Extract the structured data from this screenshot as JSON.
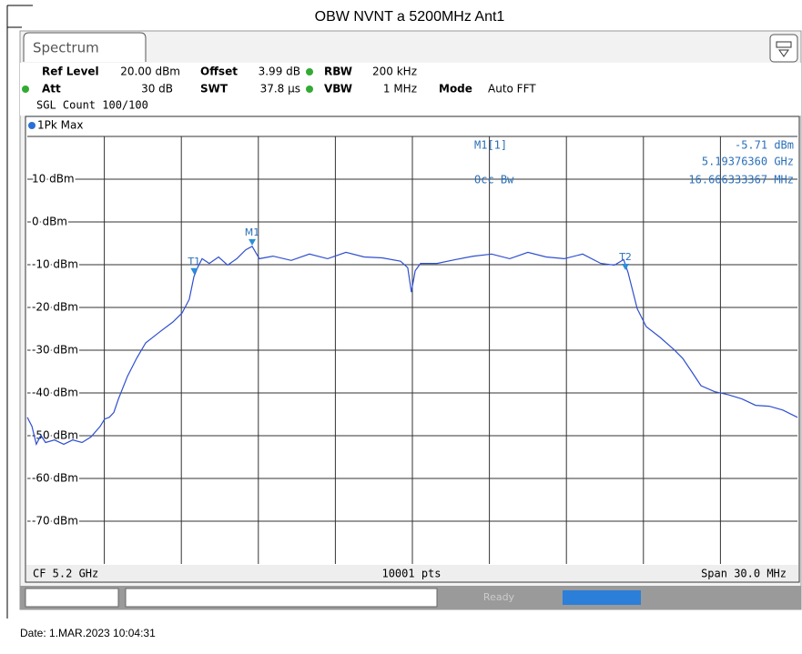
{
  "title": "OBW NVNT a 5200MHz Ant1",
  "tab": "Spectrum",
  "settings": {
    "row1": [
      "Ref Level",
      "20.00 dBm",
      "Offset",
      "3.99 dB",
      "RBW",
      "200 kHz"
    ],
    "row2": [
      "Att",
      "30 dB",
      "SWT",
      "37.8 µs",
      "VBW",
      "1 MHz",
      "Mode",
      "Auto FFT"
    ],
    "count": "SGL Count 100/100"
  },
  "trace_label": "1Pk Max",
  "readout": {
    "marker": "M1[1]",
    "level": "-5.71 dBm",
    "freq": "5.19376360 GHz",
    "obw_label": "Occ Bw",
    "obw": "16.666333367 MHz"
  },
  "footer_row": {
    "cf": "CF 5.2 GHz",
    "pts": "10001 pts",
    "span": "Span 30.0 MHz"
  },
  "status": "Ready",
  "date": "Date: 1.MAR.2023  10:04:31",
  "chart_data": {
    "type": "line",
    "xlim": [
      5185,
      5215
    ],
    "ylim": [
      -80,
      20
    ],
    "yticks": [
      {
        "value": 10,
        "label": "10 dBm"
      },
      {
        "value": 0,
        "label": "0 dBm"
      },
      {
        "value": -10,
        "label": "-10 dBm"
      },
      {
        "value": -20,
        "label": "-20 dBm"
      },
      {
        "value": -30,
        "label": "-30 dBm"
      },
      {
        "value": -40,
        "label": "-40 dBm"
      },
      {
        "value": -50,
        "label": "-50 dBm"
      },
      {
        "value": -60,
        "label": "-60 dBm"
      },
      {
        "value": -70,
        "label": "-70 dBm"
      }
    ],
    "grid": true,
    "series": [
      {
        "name": "1Pk Max",
        "color": "#2f4fd0",
        "x": [
          5185.0,
          5185.18,
          5185.35,
          5185.53,
          5185.71,
          5186.06,
          5186.42,
          5186.77,
          5187.13,
          5187.48,
          5187.84,
          5188.01,
          5188.19,
          5188.37,
          5188.55,
          5188.9,
          5189.26,
          5189.61,
          5190.14,
          5190.67,
          5191.03,
          5191.31,
          5191.49,
          5191.63,
          5191.81,
          5192.09,
          5192.45,
          5192.8,
          5193.16,
          5193.51,
          5193.76,
          5194.04,
          5194.57,
          5195.28,
          5195.99,
          5196.7,
          5197.41,
          5198.12,
          5198.83,
          5199.54,
          5199.82,
          5199.96,
          5200.11,
          5200.32,
          5200.96,
          5201.67,
          5202.38,
          5203.09,
          5203.79,
          5204.5,
          5205.21,
          5205.92,
          5206.63,
          5207.34,
          5207.87,
          5208.23,
          5208.4,
          5208.76,
          5209.11,
          5209.65,
          5210.18,
          5210.53,
          5210.89,
          5211.24,
          5211.77,
          5212.3,
          5212.84,
          5213.37,
          5213.9,
          5214.43,
          5215.0
        ],
        "values": [
          -45.7,
          -47.8,
          -52.0,
          -49.9,
          -51.6,
          -51.0,
          -52.0,
          -51.0,
          -51.6,
          -50.3,
          -47.8,
          -46.1,
          -45.7,
          -44.6,
          -41.4,
          -36.1,
          -31.9,
          -28.3,
          -25.8,
          -23.4,
          -21.3,
          -18.1,
          -12.8,
          -10.7,
          -8.6,
          -9.7,
          -8.2,
          -10.1,
          -8.6,
          -6.5,
          -5.71,
          -8.6,
          -8.0,
          -9.0,
          -7.5,
          -8.6,
          -7.1,
          -8.2,
          -8.4,
          -9.2,
          -10.7,
          -16.4,
          -11.4,
          -9.7,
          -9.7,
          -8.8,
          -8.0,
          -7.5,
          -8.6,
          -7.1,
          -8.2,
          -8.6,
          -7.5,
          -9.7,
          -10.1,
          -8.8,
          -11.8,
          -20.3,
          -24.5,
          -27.0,
          -29.8,
          -31.9,
          -35.1,
          -38.3,
          -39.7,
          -40.4,
          -41.4,
          -42.9,
          -43.1,
          -44.0,
          -45.7
        ]
      }
    ],
    "markers": [
      {
        "label": "M1",
        "x": 5193.76,
        "value": -5.71
      },
      {
        "label": "T1",
        "x": 5191.5,
        "value": -12.5
      },
      {
        "label": "T2",
        "x": 5208.3,
        "value": -11.5
      }
    ]
  }
}
